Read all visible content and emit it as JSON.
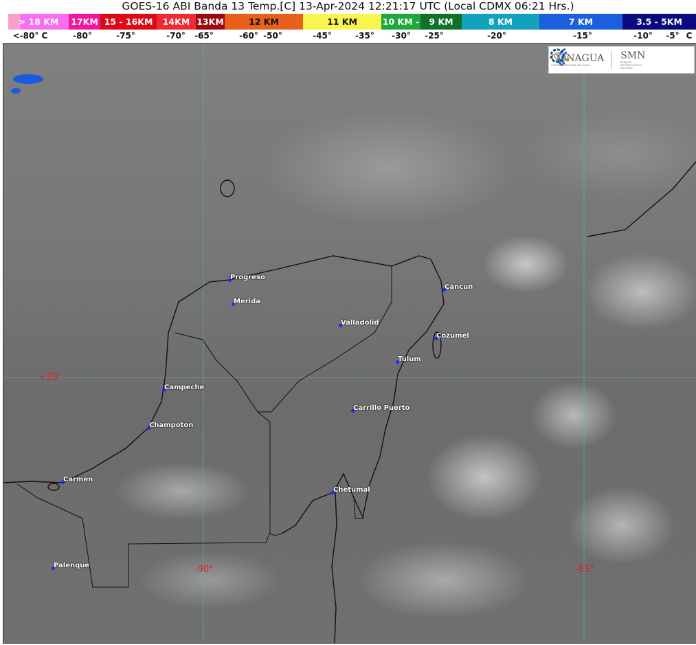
{
  "title": "GOES-16 ABI Banda 13 Temp.[C] 13-Apr-2024 12:21:17 UTC (Local CDMX  06:21 Hrs.)",
  "legend": {
    "segments": [
      {
        "label": "> 18 KM",
        "color": "#f86ef0"
      },
      {
        "label": "17KM",
        "color": "#f0189a"
      },
      {
        "label": "15 - 16KM",
        "color": "#dc0a14"
      },
      {
        "label": "14KM",
        "color": "#ee2a32"
      },
      {
        "label": "13KM",
        "color": "#9a0a10"
      },
      {
        "label": "12 KM",
        "color": "#e8601c"
      },
      {
        "label": "11 KM",
        "color": "#f8f450"
      },
      {
        "label": "10 KM -",
        "color": "#1ca83a"
      },
      {
        "label": "9 KM",
        "color": "#107228"
      },
      {
        "label": "8 KM",
        "color": "#12a2bc"
      },
      {
        "label": "7 KM",
        "color": "#1a60dc"
      },
      {
        "label": "3.5 - 5KM",
        "color": "#0a0a80"
      }
    ],
    "ticks": [
      "<-80° C",
      "-80°",
      "-75°",
      "-70°",
      "-65°",
      "-60°",
      "-50°",
      "-45°",
      "-35°",
      "-30°",
      "-25°",
      "-20°",
      "-15°",
      "-10°",
      "-5°",
      "C"
    ]
  },
  "logo": {
    "left": "CONAGUA",
    "left_sub": "COMISIÓN NACIONAL DEL AGUA",
    "right": "SMN",
    "right_sub": "SERVICIO METEOROLÓGICO NACIONAL"
  },
  "grid": {
    "lat_label": "+20°",
    "lon_labels": [
      "-90°",
      "-85°"
    ],
    "color": "#40c8d8"
  },
  "cities": [
    "Progreso",
    "Merida",
    "Valladolid",
    "Cancun",
    "Cozumel",
    "Tulum",
    "Campeche",
    "Champoton",
    "Carrillo Puerto",
    "Carmen",
    "Chetumal",
    "Palenque"
  ]
}
